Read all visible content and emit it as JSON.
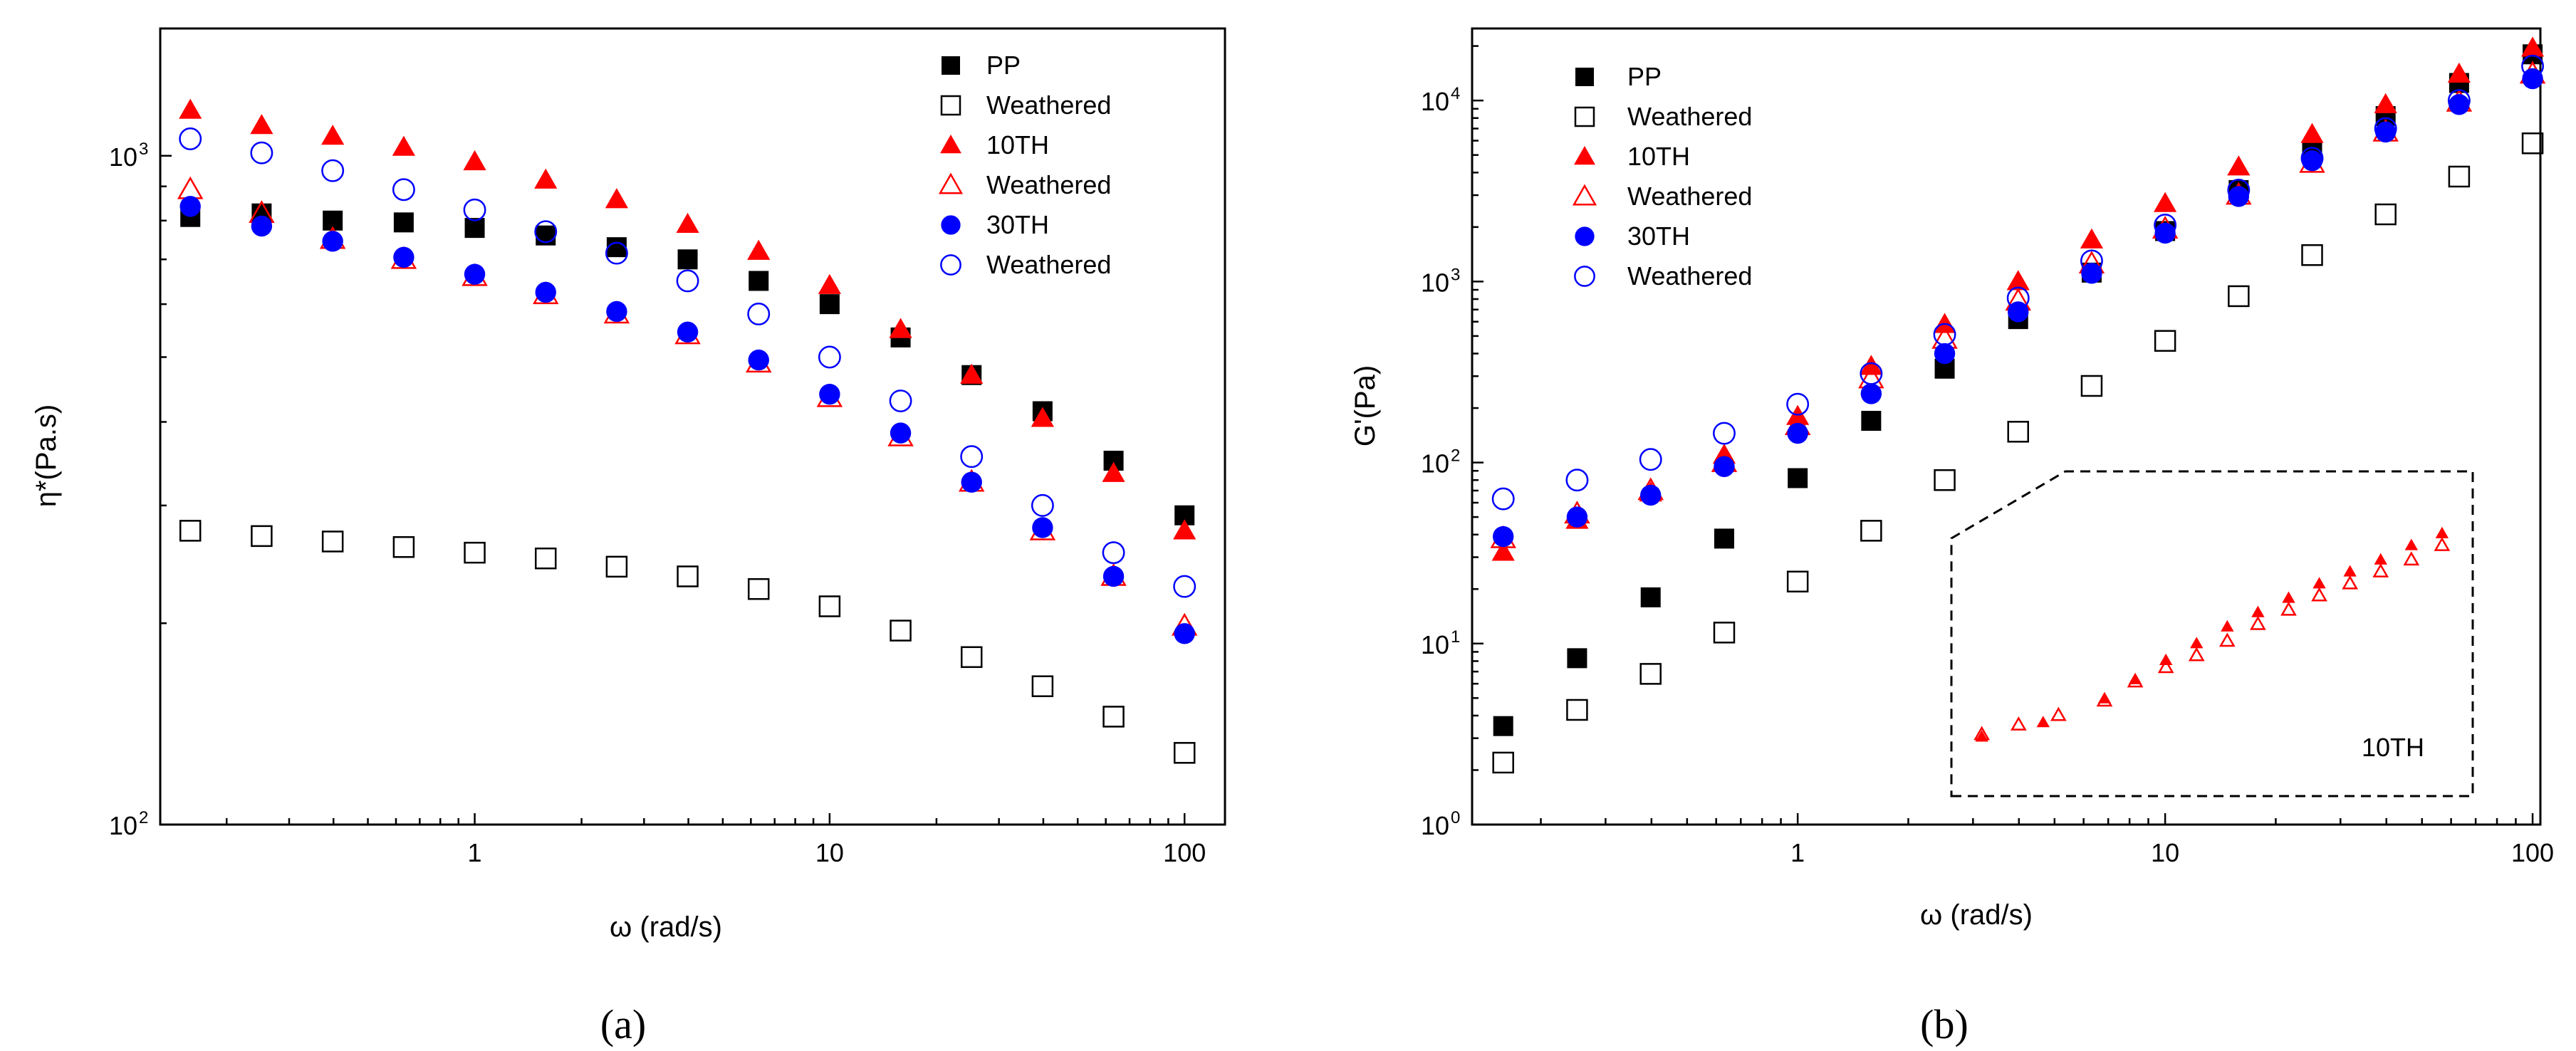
{
  "chart_data": [
    {
      "type": "scatter",
      "panel_label": "(a)",
      "xlabel": "ω (rad/s)",
      "ylabel": "η*(Pa.s)",
      "xscale": "log",
      "yscale": "log",
      "xlim": [
        0.13,
        130
      ],
      "ylim": [
        100,
        1550
      ],
      "xticks": [
        {
          "v": 1,
          "label": "1"
        },
        {
          "v": 10,
          "label": "10"
        },
        {
          "v": 100,
          "label": "100"
        }
      ],
      "yticks": [
        {
          "v": 100,
          "label": "10",
          "exp": "2"
        },
        {
          "v": 1000,
          "label": "10",
          "exp": "3"
        }
      ],
      "legend_position": "top-right",
      "x": [
        0.158,
        0.251,
        0.398,
        0.631,
        1.0,
        1.585,
        2.512,
        3.981,
        6.31,
        10.0,
        15.85,
        25.12,
        39.81,
        63.1,
        100.0
      ],
      "series": [
        {
          "name": "PP",
          "marker": "square-filled",
          "color": "#000000",
          "values": [
            810,
            820,
            800,
            795,
            780,
            760,
            730,
            700,
            650,
            600,
            535,
            470,
            415,
            350,
            290
          ]
        },
        {
          "name": "Weathered",
          "marker": "square-open",
          "color": "#000000",
          "values": [
            275,
            270,
            265,
            260,
            255,
            250,
            243,
            235,
            225,
            212,
            195,
            178,
            161,
            145,
            128
          ]
        },
        {
          "name": "10TH",
          "marker": "triangle-filled",
          "color": "#ff0000",
          "values": [
            1170,
            1110,
            1070,
            1030,
            980,
            920,
            860,
            790,
            720,
            640,
            550,
            470,
            405,
            335,
            275
          ]
        },
        {
          "name": "Weathered",
          "marker": "triangle-open",
          "color": "#ff0000",
          "values": [
            890,
            820,
            750,
            700,
            660,
            620,
            580,
            540,
            490,
            435,
            380,
            325,
            275,
            235,
            198
          ]
        },
        {
          "name": "30TH",
          "marker": "circle-filled",
          "color": "#0000ff",
          "values": [
            840,
            785,
            745,
            705,
            665,
            625,
            585,
            545,
            495,
            440,
            385,
            325,
            278,
            235,
            193
          ]
        },
        {
          "name": "Weathered",
          "marker": "circle-open",
          "color": "#0000ff",
          "values": [
            1060,
            1010,
            950,
            890,
            830,
            770,
            715,
            650,
            580,
            500,
            430,
            355,
            300,
            255,
            227
          ]
        }
      ]
    },
    {
      "type": "scatter",
      "panel_label": "(b)",
      "xlabel": "ω (rad/s)",
      "ylabel": "G'(Pa)",
      "xscale": "log",
      "yscale": "log",
      "xlim": [
        0.13,
        105
      ],
      "ylim": [
        1,
        25000
      ],
      "xticks": [
        {
          "v": 1,
          "label": "1"
        },
        {
          "v": 10,
          "label": "10"
        },
        {
          "v": 100,
          "label": "100"
        }
      ],
      "yticks": [
        {
          "v": 1,
          "label": "10",
          "exp": "0"
        },
        {
          "v": 10,
          "label": "10",
          "exp": "1"
        },
        {
          "v": 100,
          "label": "10",
          "exp": "2"
        },
        {
          "v": 1000,
          "label": "10",
          "exp": "3"
        },
        {
          "v": 10000,
          "label": "10",
          "exp": "4"
        }
      ],
      "legend_position": "top-left",
      "x": [
        0.158,
        0.251,
        0.398,
        0.631,
        1.0,
        1.585,
        2.512,
        3.981,
        6.31,
        10.0,
        15.85,
        25.12,
        39.81,
        63.1,
        100.0
      ],
      "series": [
        {
          "name": "PP",
          "marker": "square-filled",
          "color": "#000000",
          "values": [
            3.5,
            8.3,
            18,
            38,
            82,
            170,
            330,
            620,
            1120,
            1900,
            3200,
            5200,
            8200,
            12500,
            18000
          ]
        },
        {
          "name": "Weathered",
          "marker": "square-open",
          "color": "#000000",
          "values": [
            2.2,
            4.3,
            6.8,
            11.5,
            22,
            42,
            80,
            148,
            265,
            470,
            830,
            1400,
            2350,
            3800,
            5800
          ]
        },
        {
          "name": "10TH",
          "marker": "triangle-filled",
          "color": "#ff0000",
          "values": [
            32,
            48,
            68,
            110,
            180,
            340,
            580,
            1000,
            1700,
            2700,
            4300,
            6500,
            9500,
            14000,
            19500
          ]
        },
        {
          "name": "Weathered",
          "marker": "triangle-open",
          "color": "#ff0000",
          "values": [
            38,
            52,
            70,
            100,
            160,
            290,
            480,
            780,
            1250,
            1950,
            3000,
            4500,
            6700,
            9800,
            14000
          ]
        },
        {
          "name": "30TH",
          "marker": "circle-filled",
          "color": "#0000ff",
          "values": [
            39,
            50,
            66,
            95,
            145,
            240,
            400,
            680,
            1110,
            1850,
            2950,
            4650,
            6700,
            9500,
            13200
          ]
        },
        {
          "name": "Weathered",
          "marker": "circle-open",
          "color": "#0000ff",
          "values": [
            63,
            80,
            104,
            145,
            210,
            310,
            510,
            810,
            1300,
            2050,
            3200,
            4800,
            7000,
            10000,
            15500
          ]
        }
      ],
      "inset": {
        "label": "10TH",
        "series": [
          {
            "name": "10TH",
            "marker": "triangle-filled",
            "color": "#ff0000",
            "x": [
              2.512,
              3.981,
              6.31,
              7.943,
              10.0,
              12.59,
              15.85,
              19.95,
              25.12,
              31.62,
              39.81,
              50.12,
              63.1,
              79.43
            ],
            "values": [
              0.04,
              0.1,
              0.2,
              0.28,
              0.36,
              0.43,
              0.5,
              0.56,
              0.62,
              0.68,
              0.73,
              0.78,
              0.84,
              0.89
            ]
          },
          {
            "name": "Weathered",
            "marker": "triangle-open",
            "color": "#ff0000",
            "x": [
              2.512,
              3.311,
              4.467,
              6.31,
              7.943,
              10.0,
              12.59,
              15.85,
              19.95,
              25.12,
              31.62,
              39.81,
              50.12,
              63.1,
              79.43
            ],
            "values": [
              0.05,
              0.09,
              0.13,
              0.19,
              0.27,
              0.33,
              0.38,
              0.44,
              0.51,
              0.57,
              0.63,
              0.68,
              0.73,
              0.78,
              0.84
            ]
          }
        ]
      }
    }
  ]
}
